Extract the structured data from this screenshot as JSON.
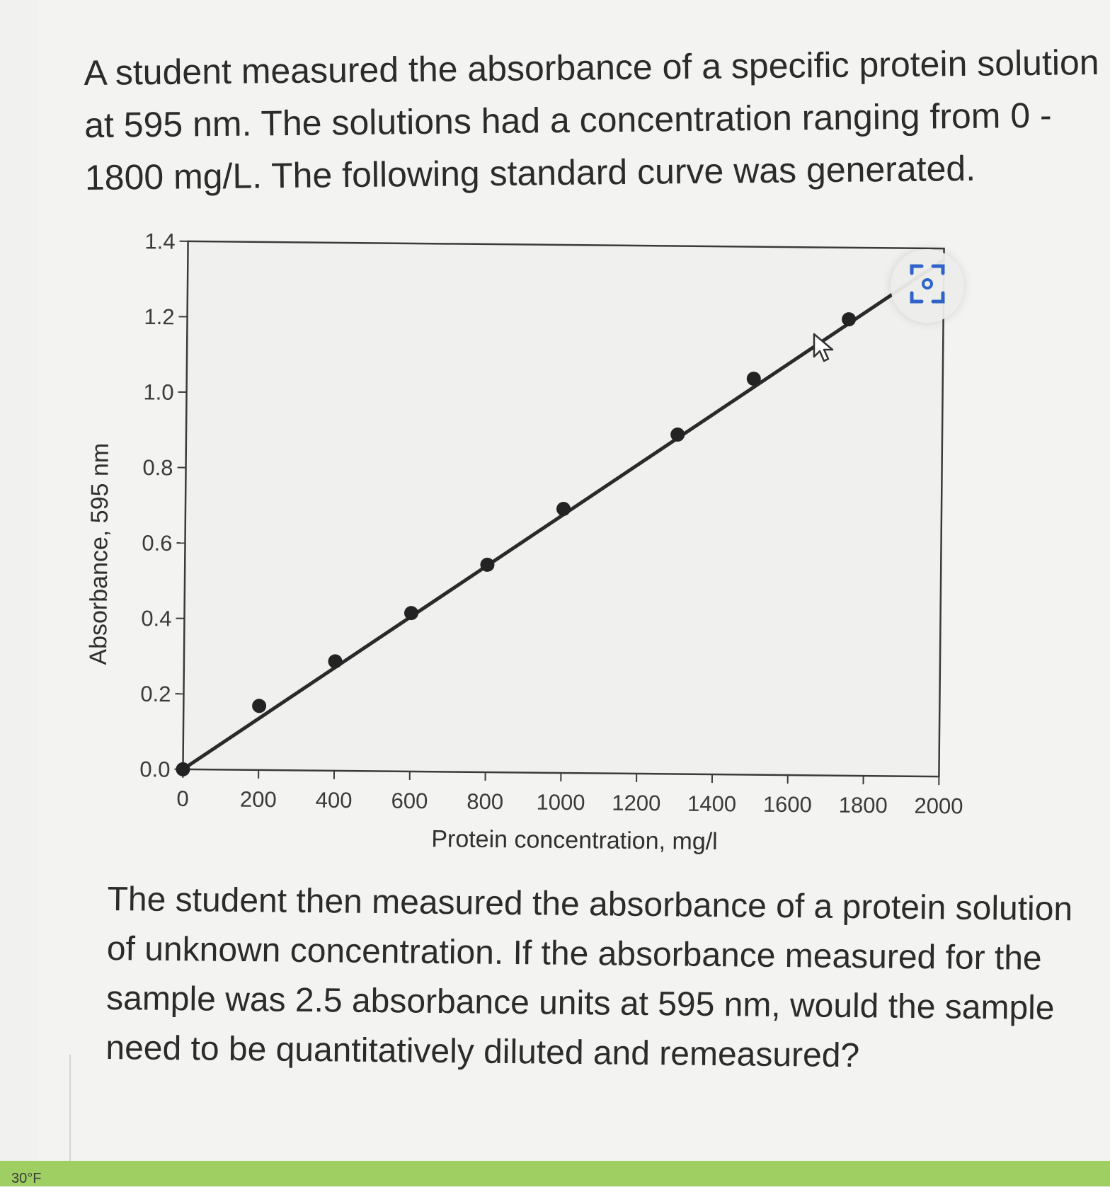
{
  "question": {
    "intro": "A student measured the absorbance of a specific protein solution at 595 nm. The solutions had a concentration ranging from 0 - 1800 mg/L. The following standard curve was generated.",
    "followup": "The student then measured the absorbance of a protein solution of unknown concentration. If the absorbance measured for the sample was 2.5 absorbance units at 595 nm, would the sample need to be quantitatively diluted and remeasured?"
  },
  "chart_data": {
    "type": "line",
    "title": "",
    "xlabel": "Protein concentration, mg/l",
    "ylabel": "Absorbance, 595 nm",
    "xlim": [
      0,
      2000
    ],
    "ylim": [
      0,
      1.4
    ],
    "x_ticks": [
      "0",
      "200",
      "400",
      "600",
      "800",
      "1000",
      "1200",
      "1400",
      "1600",
      "1800",
      "2000"
    ],
    "y_ticks": [
      "0.0",
      "0.2",
      "0.4",
      "0.6",
      "0.8",
      "1.0",
      "1.2",
      "1.4"
    ],
    "grid": false,
    "legend": "none",
    "points": [
      {
        "x": 0,
        "y": 0.0
      },
      {
        "x": 200,
        "y": 0.17
      },
      {
        "x": 400,
        "y": 0.29
      },
      {
        "x": 600,
        "y": 0.42
      },
      {
        "x": 800,
        "y": 0.55
      },
      {
        "x": 1000,
        "y": 0.7
      },
      {
        "x": 1300,
        "y": 0.9
      },
      {
        "x": 1500,
        "y": 1.05
      },
      {
        "x": 1750,
        "y": 1.21
      }
    ],
    "fit_line": {
      "x": [
        0,
        2000
      ],
      "y": [
        0.0,
        1.37
      ]
    },
    "marker_color": "#232323",
    "line_color": "#2a2a2a"
  },
  "taskbar": {
    "temperature": "30°F"
  },
  "icons": {
    "focus": "camera-focus-icon",
    "cursor": "mouse-pointer-icon"
  }
}
